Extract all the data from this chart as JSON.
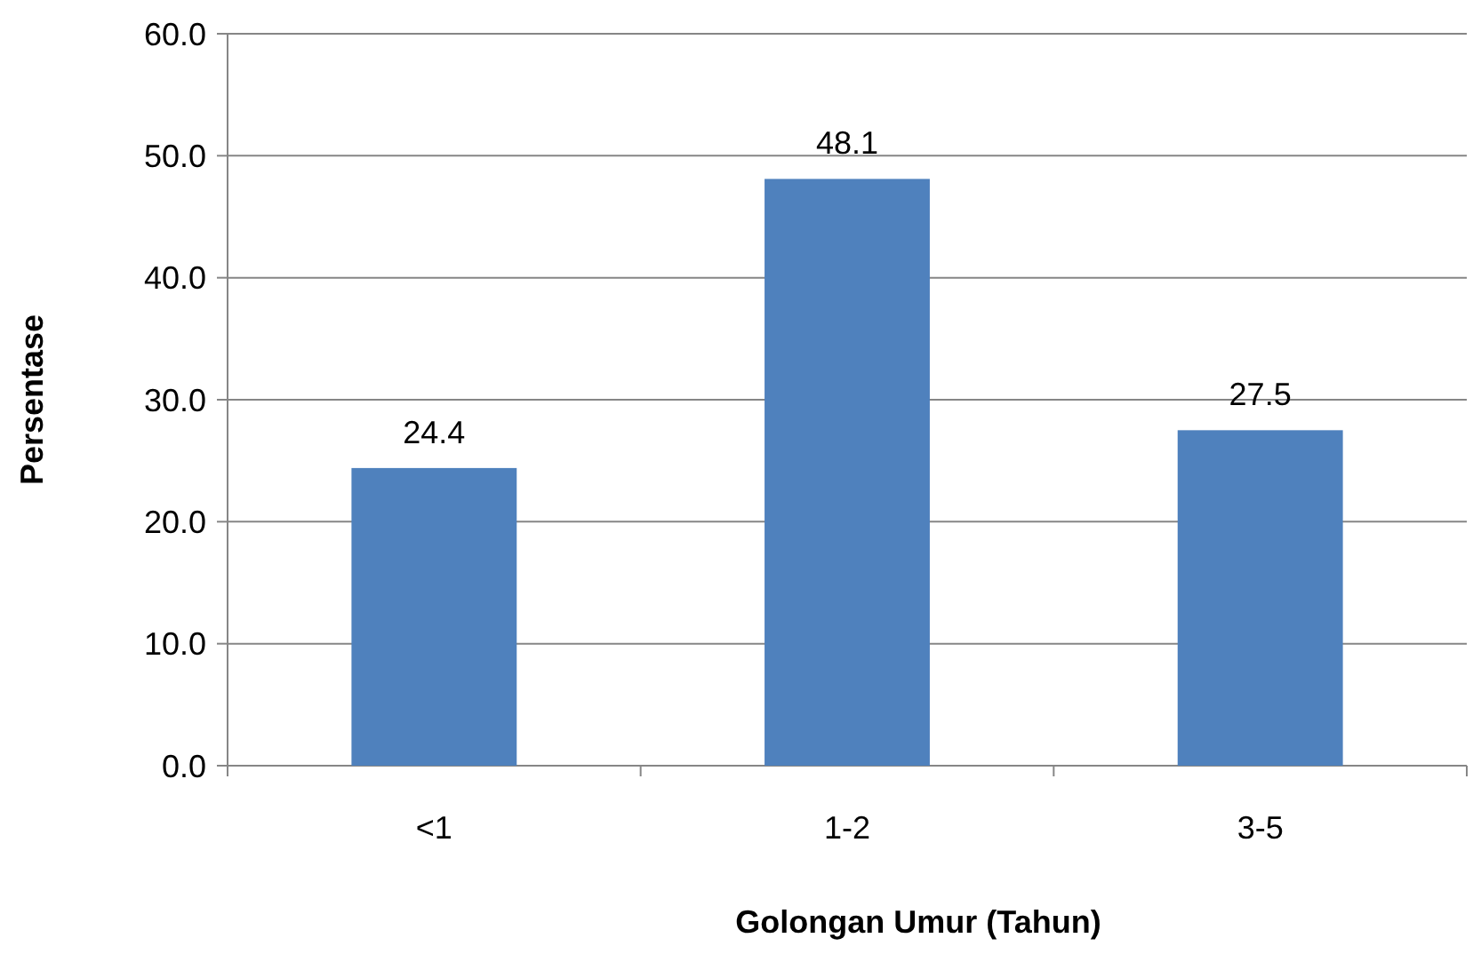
{
  "chart_data": {
    "type": "bar",
    "xlabel": "Golongan Umur (Tahun)",
    "ylabel": "Persentase",
    "categories": [
      "<1",
      "1-2",
      "3-5"
    ],
    "values": [
      24.4,
      48.1,
      27.5
    ],
    "color": "#4f81bd",
    "ylim": [
      0,
      60
    ],
    "yticks": [
      {
        "value": 0,
        "label": "0.0"
      },
      {
        "value": 10,
        "label": "10.0"
      },
      {
        "value": 20,
        "label": "20.0"
      },
      {
        "value": 30,
        "label": "30.0"
      },
      {
        "value": 40,
        "label": "40.0"
      },
      {
        "value": 50,
        "label": "50.0"
      },
      {
        "value": 60,
        "label": "60.0"
      }
    ],
    "grid": "y",
    "data_labels": true
  }
}
